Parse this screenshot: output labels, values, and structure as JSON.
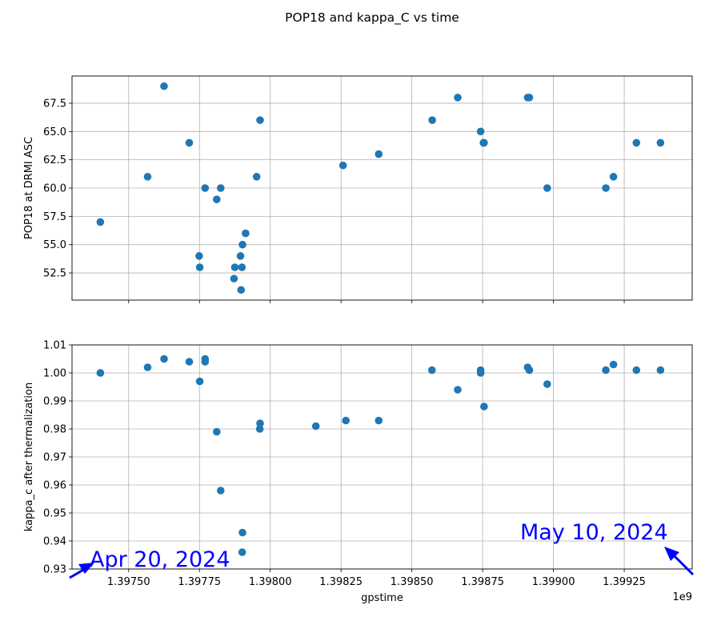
{
  "figure_title": "POP18 and kappa_C vs time",
  "x_offset_label": "1e9",
  "colors": {
    "marker": "#1f77b4",
    "annotation": "#0000ff",
    "grid": "#b0b0b0",
    "axis": "#000000"
  },
  "chart_data": [
    {
      "type": "scatter",
      "title": "",
      "xlabel": "",
      "ylabel": "POP18 at DRMI ASC",
      "xlim": [
        1.3973,
        1.39949
      ],
      "ylim": [
        50.1,
        69.9
      ],
      "xticks": [
        1.3975,
        1.39775,
        1.398,
        1.39825,
        1.3985,
        1.39875,
        1.399,
        1.39925
      ],
      "yticks": [
        52.5,
        55.0,
        57.5,
        60.0,
        62.5,
        65.0,
        67.5
      ],
      "ytick_labels": [
        "52.5",
        "55.0",
        "57.5",
        "60.0",
        "62.5",
        "65.0",
        "67.5"
      ],
      "show_xtick_labels": false,
      "grid": true,
      "x": [
        1.3974,
        1.397567,
        1.397625,
        1.397714,
        1.397749,
        1.397751,
        1.39777,
        1.397811,
        1.397825,
        1.397872,
        1.397875,
        1.397895,
        1.397897,
        1.3979,
        1.397902,
        1.397913,
        1.397952,
        1.397964,
        1.398257,
        1.398383,
        1.398572,
        1.398662,
        1.398743,
        1.398753,
        1.398755,
        1.398909,
        1.398915,
        1.398978,
        1.399185,
        1.399212,
        1.399293,
        1.399378
      ],
      "y": [
        57,
        61,
        69,
        64,
        54,
        53,
        60,
        59,
        60,
        52,
        53,
        54,
        51,
        53,
        55,
        56,
        61,
        66,
        62,
        63,
        66,
        68,
        65,
        64,
        64,
        68,
        68,
        60,
        60,
        61,
        64,
        64
      ]
    },
    {
      "type": "scatter",
      "title": "",
      "xlabel": "gpstime",
      "ylabel": "kappa_c after thermalization",
      "xlim": [
        1.3973,
        1.39949
      ],
      "ylim": [
        0.93,
        1.01
      ],
      "xticks": [
        1.3975,
        1.39775,
        1.398,
        1.39825,
        1.3985,
        1.39875,
        1.399,
        1.39925
      ],
      "xtick_labels": [
        "1.39750",
        "1.39775",
        "1.39800",
        "1.39825",
        "1.39850",
        "1.39875",
        "1.39900",
        "1.39925"
      ],
      "yticks": [
        0.93,
        0.94,
        0.95,
        0.96,
        0.97,
        0.98,
        0.99,
        1.0,
        1.01
      ],
      "ytick_labels": [
        "0.93",
        "0.94",
        "0.95",
        "0.96",
        "0.97",
        "0.98",
        "0.99",
        "1.00",
        "1.01"
      ],
      "show_xtick_labels": true,
      "grid": true,
      "x": [
        1.3974,
        1.397567,
        1.397625,
        1.397714,
        1.397751,
        1.39777,
        1.39777,
        1.397811,
        1.397825,
        1.397901,
        1.397902,
        1.397963,
        1.397964,
        1.398161,
        1.398267,
        1.398383,
        1.398571,
        1.398662,
        1.398743,
        1.398743,
        1.398755,
        1.398909,
        1.398915,
        1.398978,
        1.399185,
        1.399212,
        1.399293,
        1.399378
      ],
      "y": [
        1.0,
        1.002,
        1.005,
        1.004,
        0.997,
        1.005,
        1.004,
        0.979,
        0.958,
        0.936,
        0.943,
        0.98,
        0.982,
        0.981,
        0.983,
        0.983,
        1.001,
        0.994,
        1.001,
        1.0,
        0.988,
        1.002,
        1.001,
        0.996,
        1.001,
        1.003,
        1.001,
        1.001
      ]
    }
  ],
  "annotations": [
    {
      "text": "Apr 20, 2024"
    },
    {
      "text": "May 10, 2024"
    }
  ]
}
